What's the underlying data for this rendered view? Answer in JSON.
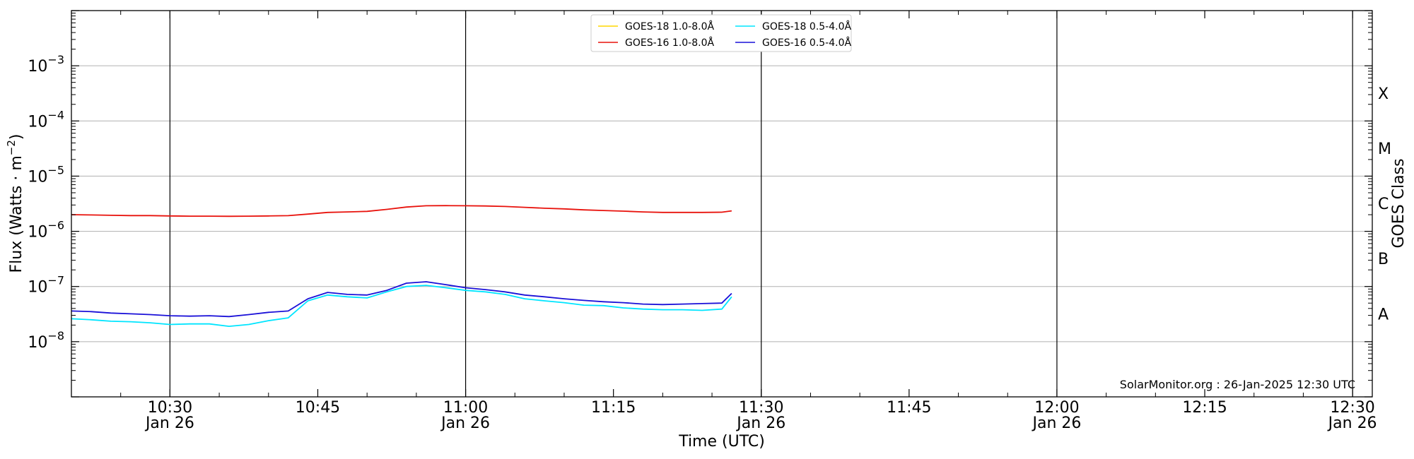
{
  "chart_data": {
    "type": "line",
    "xlabel": "Time (UTC)",
    "ylabel": "Flux (Watts · m",
    "ylabel_sup": "−2",
    "ylabel_close": ")",
    "right_label": "GOES Class",
    "credit": "SolarMonitor.org : 26-Jan-2025 12:30 UTC",
    "y_scale": "log",
    "ylim": [
      1e-09,
      0.01
    ],
    "xlim": [
      "10:20",
      "12:32"
    ],
    "grid": "horizontal at decades",
    "legend_position": "top-center",
    "y_ticks": [
      {
        "value": 1e-08,
        "base": "10",
        "exp": "−8"
      },
      {
        "value": 1e-07,
        "base": "10",
        "exp": "−7"
      },
      {
        "value": 1e-06,
        "base": "10",
        "exp": "−6"
      },
      {
        "value": 1e-05,
        "base": "10",
        "exp": "−5"
      },
      {
        "value": 0.0001,
        "base": "10",
        "exp": "−4"
      },
      {
        "value": 0.001,
        "base": "10",
        "exp": "−3"
      }
    ],
    "x_ticks": [
      {
        "time": "10:30",
        "line1": "10:30",
        "line2": "Jan 26",
        "major": true
      },
      {
        "time": "10:45",
        "line1": "10:45",
        "line2": "",
        "major": false
      },
      {
        "time": "11:00",
        "line1": "11:00",
        "line2": "Jan 26",
        "major": true
      },
      {
        "time": "11:15",
        "line1": "11:15",
        "line2": "",
        "major": false
      },
      {
        "time": "11:30",
        "line1": "11:30",
        "line2": "Jan 26",
        "major": true
      },
      {
        "time": "11:45",
        "line1": "11:45",
        "line2": "",
        "major": false
      },
      {
        "time": "12:00",
        "line1": "12:00",
        "line2": "Jan 26",
        "major": true
      },
      {
        "time": "12:15",
        "line1": "12:15",
        "line2": "",
        "major": false
      },
      {
        "time": "12:30",
        "line1": "12:30",
        "line2": "Jan 26",
        "major": true
      }
    ],
    "goes_classes": [
      {
        "label": "A",
        "flux": 3.2e-08
      },
      {
        "label": "B",
        "flux": 3.2e-07
      },
      {
        "label": "C",
        "flux": 3.2e-06
      },
      {
        "label": "M",
        "flux": 3.2e-05
      },
      {
        "label": "X",
        "flux": 0.00032
      }
    ],
    "times": [
      "10:20",
      "10:22",
      "10:24",
      "10:26",
      "10:28",
      "10:30",
      "10:32",
      "10:34",
      "10:36",
      "10:38",
      "10:40",
      "10:42",
      "10:44",
      "10:46",
      "10:48",
      "10:50",
      "10:52",
      "10:54",
      "10:56",
      "10:58",
      "11:00",
      "11:02",
      "11:04",
      "11:06",
      "11:08",
      "11:10",
      "11:12",
      "11:14",
      "11:16",
      "11:18",
      "11:20",
      "11:22",
      "11:24",
      "11:26",
      "11:27"
    ],
    "series": [
      {
        "name": "GOES-18 1.0-8.0Å",
        "color": "#ffd700",
        "values": []
      },
      {
        "name": "GOES-16 1.0-8.0Å",
        "color": "#e8120c",
        "values": [
          2e-06,
          1.98e-06,
          1.95e-06,
          1.93e-06,
          1.93e-06,
          1.9e-06,
          1.88e-06,
          1.88e-06,
          1.87e-06,
          1.88e-06,
          1.9e-06,
          1.92e-06,
          2.05e-06,
          2.2e-06,
          2.25e-06,
          2.3e-06,
          2.5e-06,
          2.75e-06,
          2.9e-06,
          2.92e-06,
          2.9e-06,
          2.88e-06,
          2.82e-06,
          2.72e-06,
          2.62e-06,
          2.55e-06,
          2.45e-06,
          2.38e-06,
          2.32e-06,
          2.25e-06,
          2.2e-06,
          2.2e-06,
          2.2e-06,
          2.22e-06,
          2.35e-06
        ]
      },
      {
        "name": "GOES-18 0.5-4.0Å",
        "color": "#00e5ff",
        "values": [
          2.6e-08,
          2.5e-08,
          2.35e-08,
          2.3e-08,
          2.2e-08,
          2.05e-08,
          2.1e-08,
          2.1e-08,
          1.9e-08,
          2.05e-08,
          2.4e-08,
          2.7e-08,
          5.5e-08,
          7e-08,
          6.5e-08,
          6.2e-08,
          8e-08,
          1e-07,
          1.05e-07,
          9.5e-08,
          8.5e-08,
          8e-08,
          7.2e-08,
          6e-08,
          5.5e-08,
          5.1e-08,
          4.6e-08,
          4.5e-08,
          4.1e-08,
          3.9e-08,
          3.8e-08,
          3.8e-08,
          3.7e-08,
          3.9e-08,
          6.5e-08
        ]
      },
      {
        "name": "GOES-16 0.5-4.0Å",
        "color": "#1a10d8",
        "values": [
          3.6e-08,
          3.5e-08,
          3.3e-08,
          3.2e-08,
          3.1e-08,
          2.95e-08,
          2.9e-08,
          2.95e-08,
          2.85e-08,
          3.1e-08,
          3.4e-08,
          3.6e-08,
          6e-08,
          7.8e-08,
          7.2e-08,
          7e-08,
          8.5e-08,
          1.15e-07,
          1.22e-07,
          1.08e-07,
          9.5e-08,
          8.8e-08,
          8e-08,
          7e-08,
          6.5e-08,
          6e-08,
          5.6e-08,
          5.3e-08,
          5.1e-08,
          4.8e-08,
          4.7e-08,
          4.8e-08,
          4.9e-08,
          5e-08,
          7.5e-08
        ]
      }
    ]
  }
}
